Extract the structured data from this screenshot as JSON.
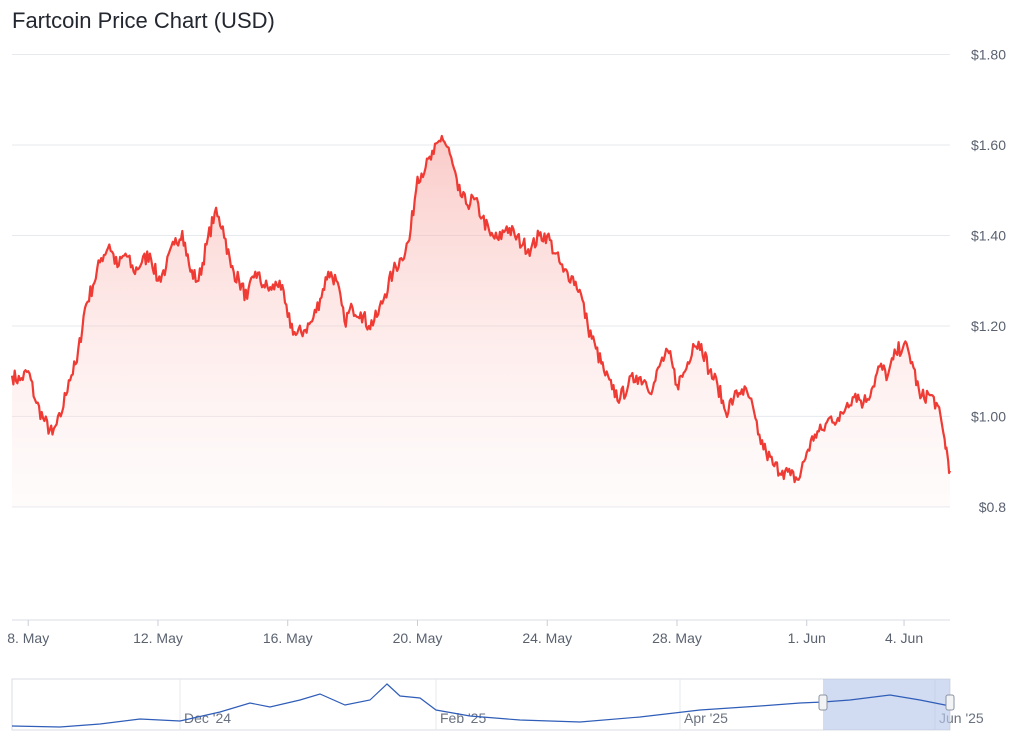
{
  "chart_data": {
    "type": "area",
    "title": "Fartcoin Price Chart (USD)",
    "xlabel": "",
    "ylabel": "",
    "y_ticks": [
      {
        "value": 1.8,
        "label": "$1.80"
      },
      {
        "value": 1.6,
        "label": "$1.60"
      },
      {
        "value": 1.4,
        "label": "$1.40"
      },
      {
        "value": 1.2,
        "label": "$1.20"
      },
      {
        "value": 1.0,
        "label": "$1.00"
      },
      {
        "value": 0.8,
        "label": "$0.8"
      }
    ],
    "ylim": [
      0.55,
      1.81
    ],
    "x_ticks": [
      {
        "date": "2025-05-08",
        "label": "8. May"
      },
      {
        "date": "2025-05-12",
        "label": "12. May"
      },
      {
        "date": "2025-05-16",
        "label": "16. May"
      },
      {
        "date": "2025-05-20",
        "label": "20. May"
      },
      {
        "date": "2025-05-24",
        "label": "24. May"
      },
      {
        "date": "2025-05-28",
        "label": "28. May"
      },
      {
        "date": "2025-06-01",
        "label": "1. Jun"
      },
      {
        "date": "2025-06-04",
        "label": "4. Jun"
      }
    ],
    "xlim": [
      "2025-05-07T12:00",
      "2025-06-05T10:00"
    ],
    "grid": true,
    "line_color": "#ef3b34",
    "series": [
      {
        "x": [
          "2025-05-07T12:00",
          "2025-05-07T18:00",
          "2025-05-08T00:00",
          "2025-05-08T06:00",
          "2025-05-08T12:00",
          "2025-05-08T18:00",
          "2025-05-09T00:00",
          "2025-05-09T06:00",
          "2025-05-09T12:00",
          "2025-05-09T18:00",
          "2025-05-10T00:00",
          "2025-05-10T06:00",
          "2025-05-10T12:00",
          "2025-05-10T18:00",
          "2025-05-11T00:00",
          "2025-05-11T06:00",
          "2025-05-11T12:00",
          "2025-05-11T18:00",
          "2025-05-12T00:00",
          "2025-05-12T06:00",
          "2025-05-12T12:00",
          "2025-05-12T18:00",
          "2025-05-13T00:00",
          "2025-05-13T06:00",
          "2025-05-13T12:00",
          "2025-05-13T18:00",
          "2025-05-14T00:00",
          "2025-05-14T06:00",
          "2025-05-14T12:00",
          "2025-05-14T18:00",
          "2025-05-15T00:00",
          "2025-05-15T06:00",
          "2025-05-15T12:00",
          "2025-05-15T18:00",
          "2025-05-16T00:00",
          "2025-05-16T06:00",
          "2025-05-16T12:00",
          "2025-05-16T18:00",
          "2025-05-17T00:00",
          "2025-05-17T06:00",
          "2025-05-17T12:00",
          "2025-05-17T18:00",
          "2025-05-18T00:00",
          "2025-05-18T06:00",
          "2025-05-18T12:00",
          "2025-05-18T18:00",
          "2025-05-19T00:00",
          "2025-05-19T06:00",
          "2025-05-19T12:00",
          "2025-05-19T18:00",
          "2025-05-20T00:00",
          "2025-05-20T06:00",
          "2025-05-20T12:00",
          "2025-05-20T18:00",
          "2025-05-21T00:00",
          "2025-05-21T06:00",
          "2025-05-21T12:00",
          "2025-05-21T18:00",
          "2025-05-22T00:00",
          "2025-05-22T06:00",
          "2025-05-22T12:00",
          "2025-05-22T18:00",
          "2025-05-23T00:00",
          "2025-05-23T06:00",
          "2025-05-23T12:00",
          "2025-05-23T18:00",
          "2025-05-24T00:00",
          "2025-05-24T06:00",
          "2025-05-24T12:00",
          "2025-05-24T18:00",
          "2025-05-25T00:00",
          "2025-05-25T06:00",
          "2025-05-25T12:00",
          "2025-05-25T18:00",
          "2025-05-26T00:00",
          "2025-05-26T06:00",
          "2025-05-26T12:00",
          "2025-05-26T18:00",
          "2025-05-27T00:00",
          "2025-05-27T06:00",
          "2025-05-27T12:00",
          "2025-05-27T18:00",
          "2025-05-28T00:00",
          "2025-05-28T06:00",
          "2025-05-28T12:00",
          "2025-05-28T18:00",
          "2025-05-29T00:00",
          "2025-05-29T06:00",
          "2025-05-29T12:00",
          "2025-05-29T18:00",
          "2025-05-30T00:00",
          "2025-05-30T06:00",
          "2025-05-30T12:00",
          "2025-05-30T18:00",
          "2025-05-31T00:00",
          "2025-05-31T06:00",
          "2025-05-31T12:00",
          "2025-05-31T18:00",
          "2025-06-01T00:00",
          "2025-06-01T06:00",
          "2025-06-01T12:00",
          "2025-06-01T18:00",
          "2025-06-02T00:00",
          "2025-06-02T06:00",
          "2025-06-02T12:00",
          "2025-06-02T18:00",
          "2025-06-03T00:00",
          "2025-06-03T06:00",
          "2025-06-03T12:00",
          "2025-06-03T18:00",
          "2025-06-04T00:00",
          "2025-06-04T06:00",
          "2025-06-04T12:00",
          "2025-06-04T18:00",
          "2025-06-05T00:00",
          "2025-06-05T06:00",
          "2025-06-05T10:00"
        ],
        "y": [
          1.09,
          1.08,
          1.1,
          1.03,
          0.99,
          0.96,
          1.0,
          1.08,
          1.12,
          1.24,
          1.29,
          1.35,
          1.38,
          1.33,
          1.36,
          1.32,
          1.34,
          1.36,
          1.3,
          1.33,
          1.38,
          1.41,
          1.32,
          1.3,
          1.38,
          1.45,
          1.42,
          1.33,
          1.3,
          1.26,
          1.32,
          1.29,
          1.28,
          1.3,
          1.22,
          1.18,
          1.19,
          1.21,
          1.26,
          1.32,
          1.3,
          1.21,
          1.24,
          1.23,
          1.2,
          1.22,
          1.27,
          1.32,
          1.35,
          1.39,
          1.53,
          1.55,
          1.58,
          1.62,
          1.58,
          1.5,
          1.47,
          1.48,
          1.44,
          1.4,
          1.39,
          1.42,
          1.4,
          1.38,
          1.37,
          1.4,
          1.4,
          1.36,
          1.32,
          1.31,
          1.28,
          1.2,
          1.15,
          1.1,
          1.06,
          1.04,
          1.07,
          1.09,
          1.08,
          1.06,
          1.12,
          1.14,
          1.07,
          1.1,
          1.16,
          1.16,
          1.1,
          1.07,
          1.01,
          1.04,
          1.06,
          1.04,
          0.96,
          0.92,
          0.89,
          0.88,
          0.87,
          0.86,
          0.92,
          0.96,
          0.97,
          1.0,
          0.99,
          1.03,
          1.05,
          1.03,
          1.06,
          1.11,
          1.09,
          1.14,
          1.16,
          1.12,
          1.04,
          1.05,
          1.03,
          0.95,
          0.88
        ],
        "note_x_order": "sorted"
      }
    ],
    "navigator": {
      "labels": [
        "Dec '24",
        "Feb '25",
        "Apr '25",
        "Jun '25"
      ]
    }
  }
}
